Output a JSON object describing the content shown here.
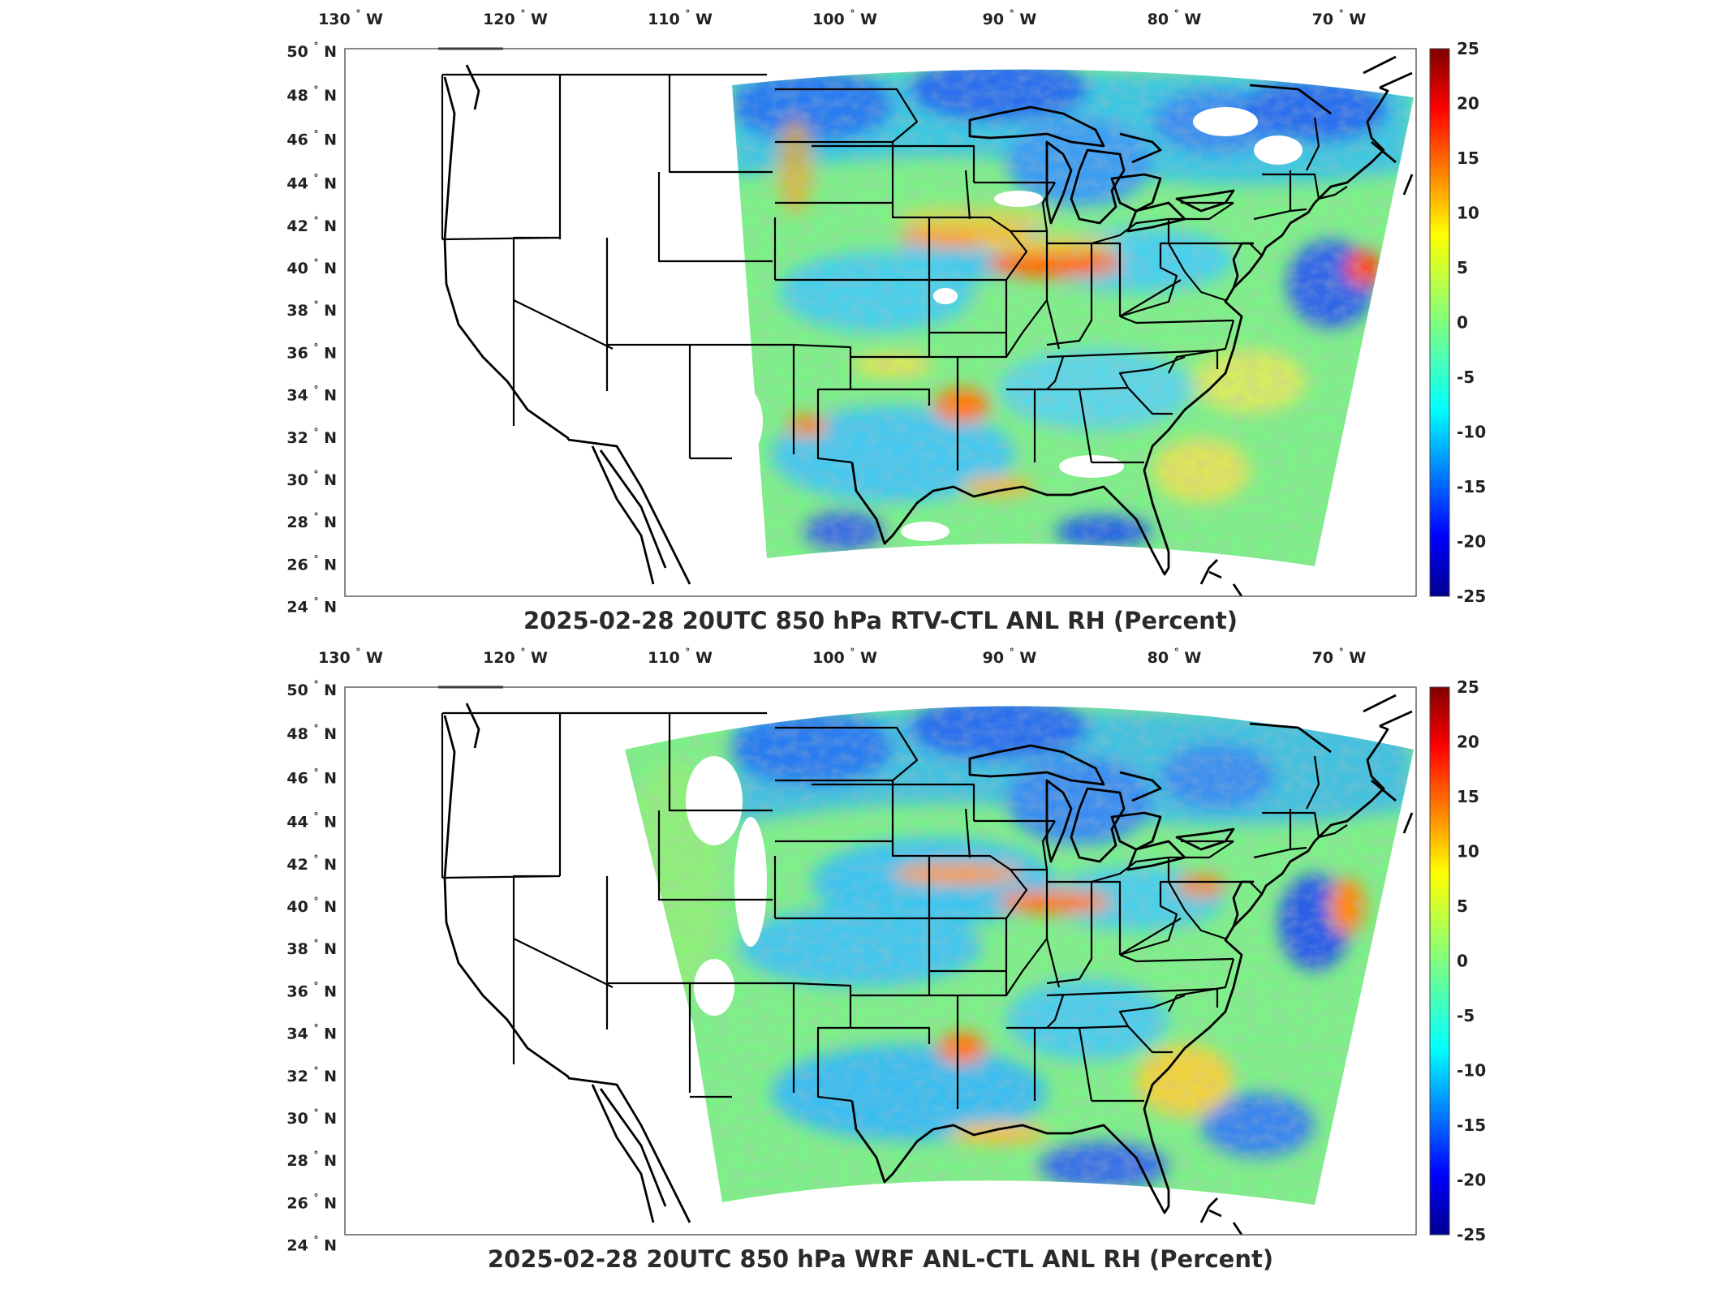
{
  "panels": [
    {
      "title": "2025-02-28 20UTC 850 hPa RTV-CTL ANL RH (Percent)",
      "variant": "rtv"
    },
    {
      "title": "2025-02-28 20UTC 850 hPa WRF ANL-CTL ANL RH (Percent)",
      "variant": "wrf"
    }
  ],
  "axes": {
    "lon_ticks": [
      {
        "num": "130",
        "hemi": "W",
        "value": -130
      },
      {
        "num": "120",
        "hemi": "W",
        "value": -120
      },
      {
        "num": "110",
        "hemi": "W",
        "value": -110
      },
      {
        "num": "100",
        "hemi": "W",
        "value": -100
      },
      {
        "num": "90",
        "hemi": "W",
        "value": -90
      },
      {
        "num": "80",
        "hemi": "W",
        "value": -80
      },
      {
        "num": "70",
        "hemi": "W",
        "value": -70
      }
    ],
    "lat_ticks": [
      {
        "num": "50",
        "hemi": "N",
        "value": 50
      },
      {
        "num": "48",
        "hemi": "N",
        "value": 48
      },
      {
        "num": "46",
        "hemi": "N",
        "value": 46
      },
      {
        "num": "44",
        "hemi": "N",
        "value": 44
      },
      {
        "num": "42",
        "hemi": "N",
        "value": 42
      },
      {
        "num": "40",
        "hemi": "N",
        "value": 40
      },
      {
        "num": "38",
        "hemi": "N",
        "value": 38
      },
      {
        "num": "36",
        "hemi": "N",
        "value": 36
      },
      {
        "num": "34",
        "hemi": "N",
        "value": 34
      },
      {
        "num": "32",
        "hemi": "N",
        "value": 32
      },
      {
        "num": "30",
        "hemi": "N",
        "value": 30
      },
      {
        "num": "28",
        "hemi": "N",
        "value": 28
      },
      {
        "num": "26",
        "hemi": "N",
        "value": 26
      },
      {
        "num": "24",
        "hemi": "N",
        "value": 24
      }
    ],
    "degree_symbol": "°"
  },
  "colorbar": {
    "ticks": [
      "25",
      "20",
      "15",
      "10",
      "5",
      "0",
      "-5",
      "-10",
      "-15",
      "-20",
      "-25"
    ],
    "min": -25,
    "max": 25,
    "colormap": "jet",
    "colors": [
      "#00008f",
      "#0000ff",
      "#0080ff",
      "#00ffff",
      "#80ff80",
      "#ffff00",
      "#ff8000",
      "#ff0000",
      "#800000"
    ]
  }
}
